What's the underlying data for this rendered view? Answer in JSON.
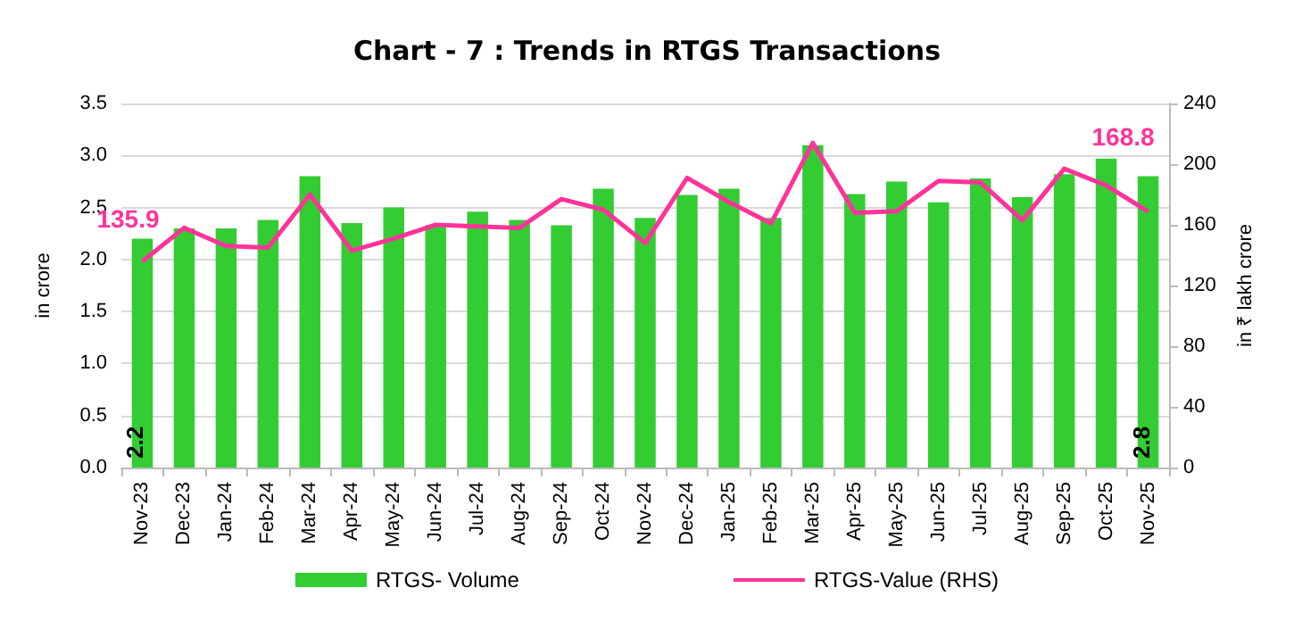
{
  "chart_data": {
    "type": "bar",
    "title": "Chart - 7 : Trends in RTGS Transactions",
    "ylabel": "in crore",
    "y2label": "in ₹ lakh crore",
    "categories": [
      "Nov-23",
      "Dec-23",
      "Jan-24",
      "Feb-24",
      "Mar-24",
      "Apr-24",
      "May-24",
      "Jun-24",
      "Jul-24",
      "Aug-24",
      "Sep-24",
      "Oct-24",
      "Nov-24",
      "Dec-24",
      "Jan-25",
      "Feb-25",
      "Mar-25",
      "Apr-25",
      "May-25",
      "Jun-25",
      "Jul-25",
      "Aug-25",
      "Sep-25",
      "Oct-25",
      "Nov-25"
    ],
    "series": [
      {
        "name": "RTGS- Volume",
        "color": "#33cc33",
        "values": [
          2.2,
          2.3,
          2.3,
          2.38,
          2.8,
          2.35,
          2.5,
          2.33,
          2.46,
          2.38,
          2.33,
          2.68,
          2.4,
          2.62,
          2.68,
          2.4,
          3.1,
          2.63,
          2.75,
          2.55,
          2.78,
          2.6,
          2.82,
          2.97,
          2.8
        ],
        "value_labels": [
          "2.2",
          null,
          null,
          null,
          null,
          null,
          null,
          null,
          null,
          null,
          null,
          null,
          null,
          null,
          null,
          null,
          null,
          null,
          null,
          null,
          null,
          null,
          null,
          null,
          "2.8"
        ]
      },
      {
        "name": "RTGS-Value (RHS)",
        "type": "line",
        "axis": "y2",
        "color": "#ff3399",
        "values": [
          135.9,
          158,
          146,
          145,
          180,
          143,
          151,
          160,
          159,
          158,
          177,
          170,
          148,
          191,
          175,
          161,
          214,
          168,
          169,
          189,
          188,
          163,
          197,
          186,
          168.8
        ],
        "value_labels": [
          "135.9",
          null,
          null,
          null,
          null,
          null,
          null,
          null,
          null,
          null,
          null,
          null,
          null,
          null,
          null,
          null,
          null,
          null,
          null,
          null,
          null,
          null,
          null,
          null,
          "168.8"
        ]
      }
    ],
    "ylim": [
      0,
      3.5
    ],
    "yticks": [
      {
        "value": 0,
        "label": "0.0"
      },
      0.5,
      {
        "value": 1,
        "label": "1.0"
      },
      1.5,
      {
        "value": 2,
        "label": "2.0"
      },
      2.5,
      {
        "value": 3,
        "label": "3.0"
      },
      3.5
    ],
    "y2lim": [
      0,
      240
    ],
    "y2ticks": [
      0,
      40,
      80,
      120,
      160,
      200,
      240
    ],
    "grid": "y",
    "legend": "bottom",
    "marker": "none",
    "line_style": "solid"
  }
}
